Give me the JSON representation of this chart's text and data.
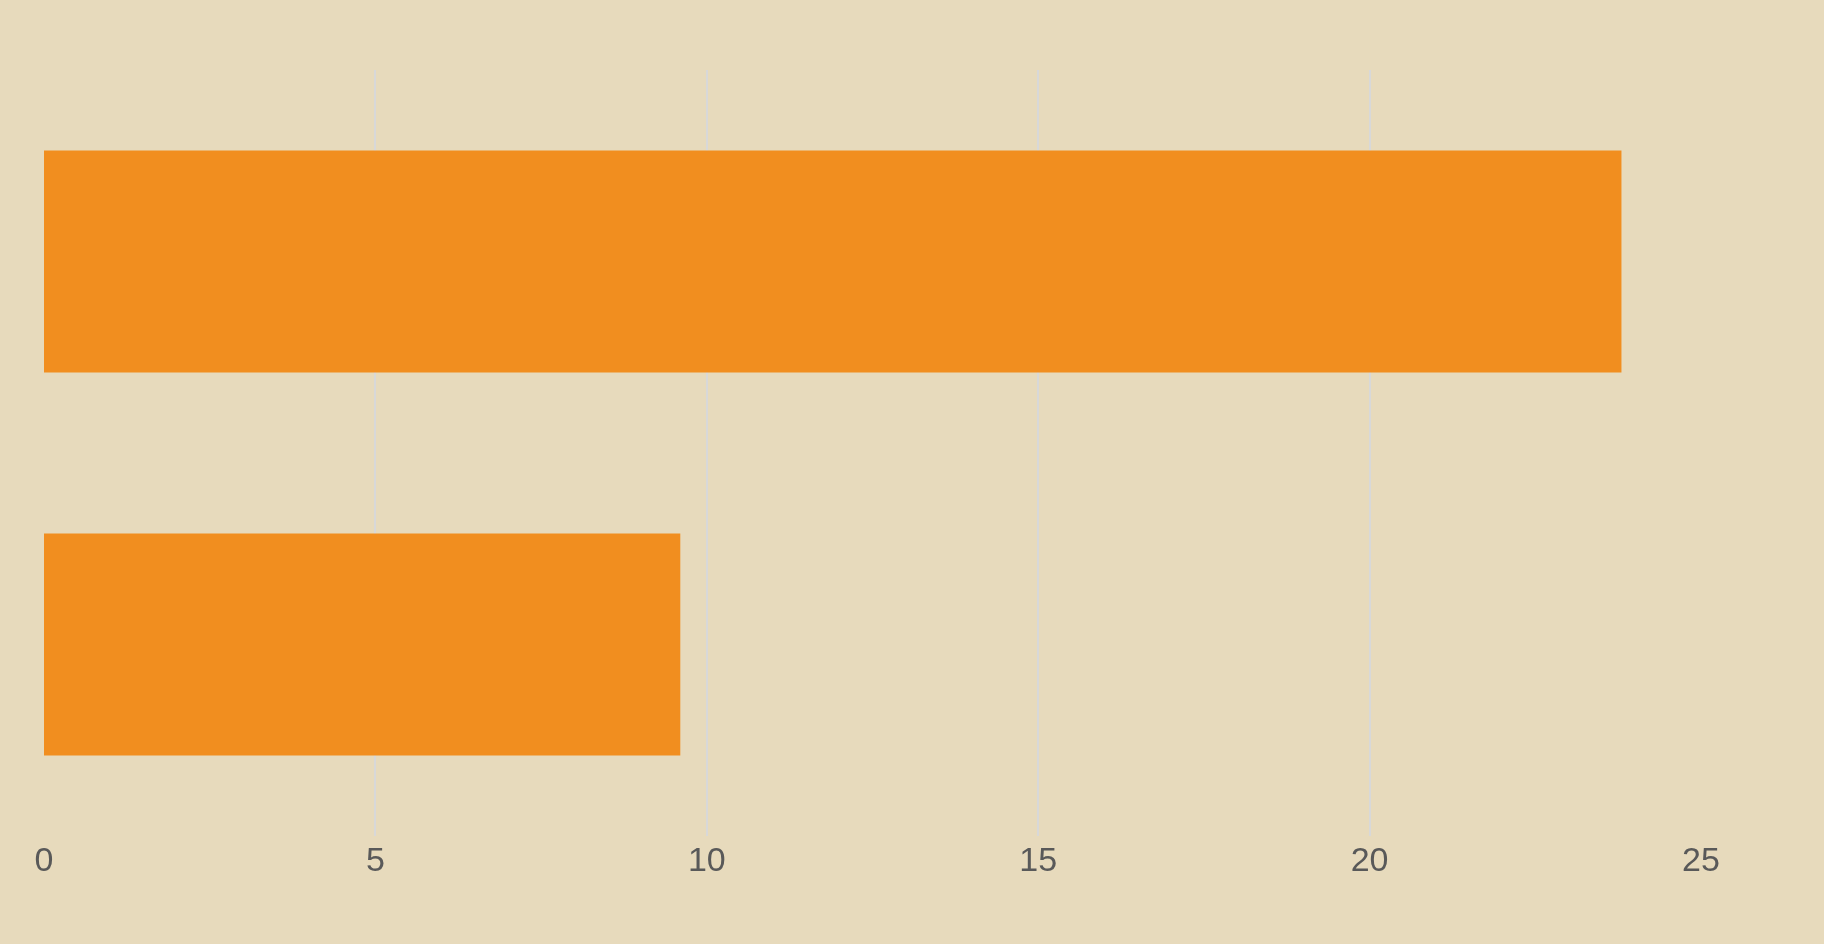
{
  "chart_data": {
    "type": "bar",
    "orientation": "horizontal",
    "categories": [
      null,
      null
    ],
    "values": [
      23.8,
      9.6
    ],
    "color": "#f18e1f",
    "xlim": [
      0,
      25
    ],
    "xticks": [
      0,
      5,
      10,
      15,
      20,
      25
    ],
    "grid": "x",
    "tick_labels": "x"
  }
}
